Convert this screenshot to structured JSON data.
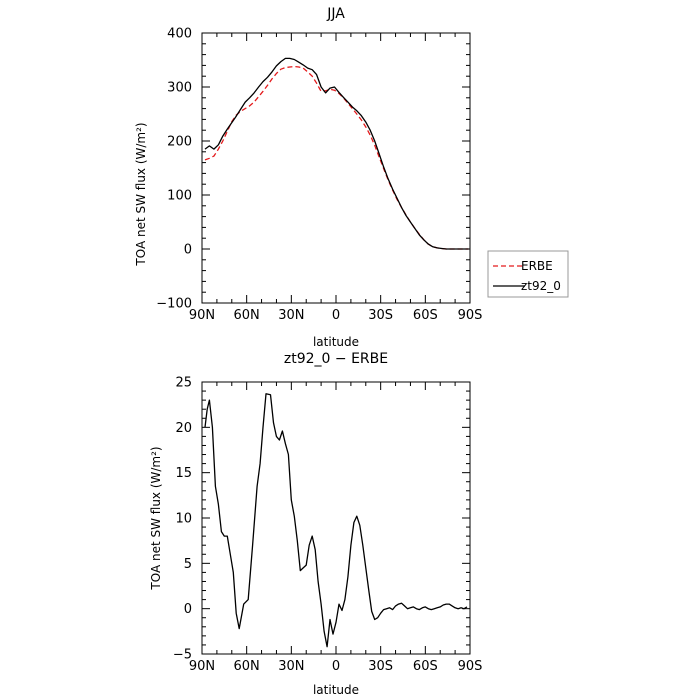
{
  "chart_data": [
    {
      "type": "line",
      "title": "JJA",
      "xlabel": "latitude",
      "ylabel": "TOA net SW flux (W/m²)",
      "xlim": [
        90,
        -90
      ],
      "ylim": [
        -100,
        400
      ],
      "x_ticks": [
        {
          "value": 90,
          "label": "90N"
        },
        {
          "value": 60,
          "label": "60N"
        },
        {
          "value": 30,
          "label": "30N"
        },
        {
          "value": 0,
          "label": "0"
        },
        {
          "value": -30,
          "label": "30S"
        },
        {
          "value": -60,
          "label": "60S"
        },
        {
          "value": -90,
          "label": "90S"
        }
      ],
      "y_ticks": [
        -100,
        0,
        100,
        200,
        300,
        400
      ],
      "legend": {
        "position": "right",
        "entries": [
          "ERBE",
          "zt92_0"
        ]
      },
      "series": [
        {
          "name": "ERBE",
          "style": "dashed",
          "color": "#e41a1c",
          "x": [
            88,
            85,
            82,
            79,
            76,
            73,
            70,
            67,
            64,
            61,
            58,
            55,
            52,
            49,
            46,
            43,
            40,
            37,
            34,
            31,
            28,
            25,
            22,
            19,
            16,
            13,
            10,
            7,
            4,
            1,
            -2,
            -5,
            -8,
            -11,
            -14,
            -17,
            -20,
            -23,
            -26,
            -29,
            -32,
            -35,
            -38,
            -41,
            -44,
            -47,
            -50,
            -53,
            -56,
            -59,
            -62,
            -65,
            -68,
            -71,
            -74,
            -77,
            -80,
            -83,
            -86,
            -89
          ],
          "y": [
            165,
            168,
            172,
            185,
            200,
            218,
            236,
            248,
            255,
            260,
            265,
            272,
            282,
            292,
            303,
            315,
            325,
            333,
            336,
            337,
            338,
            337,
            335,
            328,
            320,
            307,
            292,
            293,
            296,
            294,
            288,
            280,
            270,
            260,
            250,
            239,
            226,
            211,
            192,
            170,
            149,
            128,
            109,
            92,
            77,
            63,
            50,
            38,
            27,
            17,
            9,
            4,
            2,
            1,
            0,
            0,
            0,
            0,
            0,
            0
          ]
        },
        {
          "name": "zt92_0",
          "style": "solid",
          "color": "#000000",
          "x": [
            88,
            85,
            82,
            79,
            76,
            73,
            70,
            67,
            64,
            61,
            58,
            55,
            52,
            49,
            46,
            43,
            40,
            37,
            34,
            31,
            28,
            25,
            22,
            19,
            16,
            13,
            10,
            7,
            4,
            1,
            -2,
            -5,
            -8,
            -11,
            -14,
            -17,
            -20,
            -23,
            -26,
            -29,
            -32,
            -35,
            -38,
            -41,
            -44,
            -47,
            -50,
            -53,
            -56,
            -59,
            -62,
            -65,
            -68,
            -71,
            -74,
            -77,
            -80,
            -83,
            -86,
            -89
          ],
          "y": [
            185,
            191,
            185,
            193,
            209,
            222,
            234,
            246,
            259,
            272,
            280,
            289,
            300,
            310,
            318,
            328,
            339,
            347,
            353,
            353,
            351,
            346,
            341,
            335,
            332,
            323,
            300,
            289,
            298,
            300,
            290,
            281,
            272,
            263,
            256,
            247,
            235,
            220,
            200,
            176,
            152,
            130,
            111,
            94,
            77,
            62,
            50,
            38,
            26,
            17,
            9,
            4,
            2,
            1,
            0,
            0,
            0,
            0,
            0,
            0
          ]
        }
      ]
    },
    {
      "type": "line",
      "title": "zt92_0 − ERBE",
      "xlabel": "latitude",
      "ylabel": "TOA net SW flux (W/m²)",
      "xlim": [
        90,
        -90
      ],
      "ylim": [
        -5,
        25
      ],
      "x_ticks": [
        {
          "value": 90,
          "label": "90N"
        },
        {
          "value": 60,
          "label": "60N"
        },
        {
          "value": 30,
          "label": "30N"
        },
        {
          "value": 0,
          "label": "0"
        },
        {
          "value": -30,
          "label": "30S"
        },
        {
          "value": -60,
          "label": "60S"
        },
        {
          "value": -90,
          "label": "90S"
        }
      ],
      "y_ticks": [
        -5,
        0,
        5,
        10,
        15,
        20,
        25
      ],
      "series": [
        {
          "name": "",
          "style": "solid",
          "color": "#000000",
          "x": [
            88,
            86.5,
            85,
            83,
            81,
            79,
            77,
            75,
            73,
            71,
            69,
            67,
            65,
            62,
            59,
            56,
            53,
            51,
            49,
            47,
            44,
            42,
            40,
            38,
            36,
            34,
            32,
            30,
            28,
            26,
            24,
            22,
            20,
            18,
            16,
            14,
            12,
            10,
            8,
            6,
            4,
            2,
            0,
            -2,
            -4,
            -6,
            -8,
            -10,
            -12,
            -14,
            -16,
            -18,
            -20,
            -22,
            -24,
            -26,
            -28,
            -30,
            -32,
            -34,
            -36,
            -38,
            -40,
            -42,
            -44,
            -46,
            -48,
            -50,
            -52,
            -54,
            -56,
            -58,
            -60,
            -62,
            -64,
            -66,
            -68,
            -70,
            -72,
            -74,
            -76,
            -78,
            -80,
            -82,
            -84,
            -86,
            -88
          ],
          "y": [
            20,
            22,
            23,
            20,
            13.5,
            11.5,
            8.5,
            8,
            8,
            6,
            4,
            -0.5,
            -2.2,
            0.5,
            1,
            7,
            13.5,
            16,
            20,
            23.7,
            23.6,
            20.5,
            19,
            18.6,
            19.6,
            18.2,
            17,
            12,
            10.2,
            7.5,
            4.2,
            4.5,
            4.8,
            7,
            8,
            6.5,
            3,
            0.5,
            -2.5,
            -4.2,
            -1.2,
            -2.8,
            -1.5,
            0.5,
            -0.2,
            1,
            3.5,
            7,
            9.5,
            10.2,
            9.2,
            7,
            4.5,
            2,
            -0.3,
            -1.2,
            -1,
            -0.5,
            -0.1,
            0,
            0.1,
            -0.1,
            0.3,
            0.5,
            0.6,
            0.3,
            0,
            0.1,
            0.2,
            0,
            -0.1,
            0.1,
            0.2,
            0,
            -0.1,
            0,
            0.1,
            0.2,
            0.4,
            0.5,
            0.5,
            0.3,
            0.1,
            0,
            0.1,
            0,
            0.2
          ]
        }
      ]
    }
  ]
}
